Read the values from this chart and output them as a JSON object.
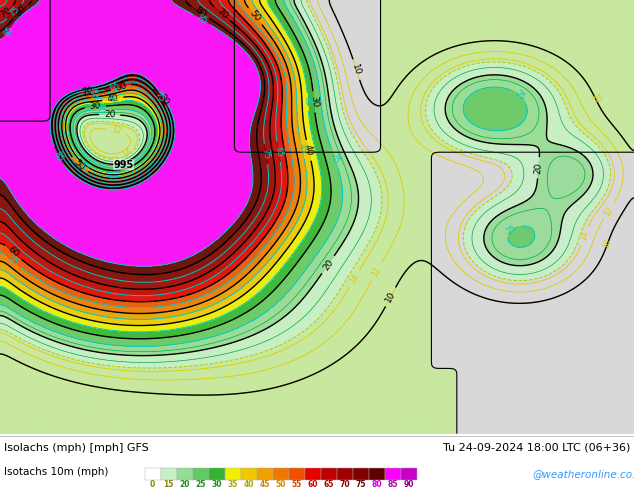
{
  "title_left": "Isolachs (mph) [mph] GFS",
  "title_right": "Tu 24-09-2024 18:00 LTC (06+36)",
  "legend_label": "Isotachs 10m (mph)",
  "legend_values": [
    "0",
    "15",
    "20",
    "25",
    "30",
    "35",
    "40",
    "45",
    "50",
    "55",
    "60",
    "65",
    "70",
    "75",
    "80",
    "85",
    "90"
  ],
  "legend_colors": [
    "#ffffff",
    "#c8f0c8",
    "#96dc96",
    "#64c864",
    "#32b432",
    "#f0f000",
    "#f0c800",
    "#f0a000",
    "#f07800",
    "#f05000",
    "#e60000",
    "#c00000",
    "#a00000",
    "#800000",
    "#600000",
    "#ff00ff",
    "#c800c8"
  ],
  "land_color": "#c8e8a0",
  "sea_color": "#d8d8d8",
  "watermark": "@weatheronline.co.uk",
  "figsize": [
    6.34,
    4.9
  ],
  "dpi": 100
}
